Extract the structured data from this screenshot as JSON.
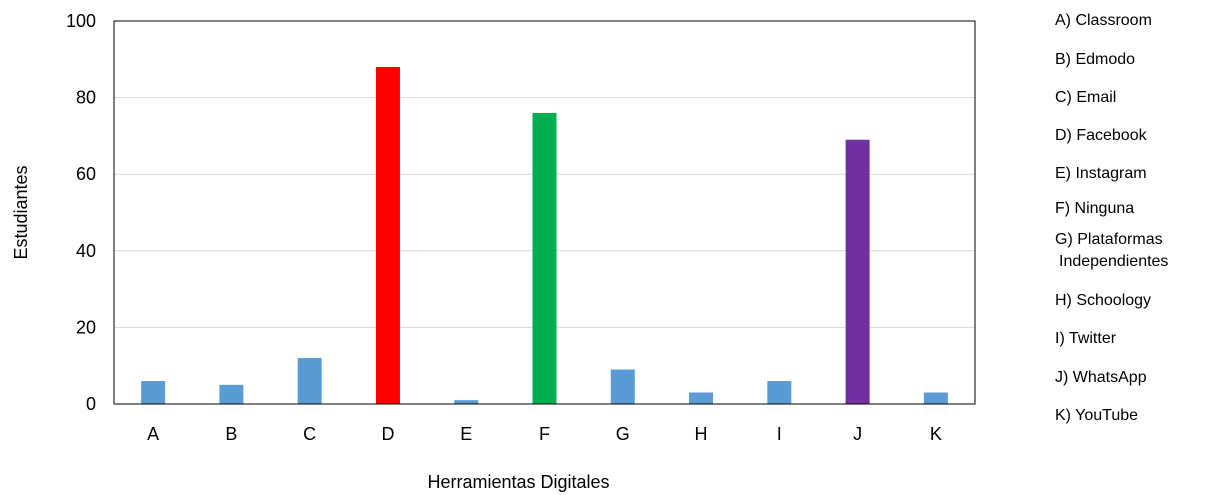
{
  "chart_data": {
    "type": "bar",
    "title": "",
    "xlabel": "Herramientas Digitales",
    "ylabel": "Estudiantes",
    "ylim": [
      0,
      100
    ],
    "yticks": [
      0,
      20,
      40,
      60,
      80,
      100
    ],
    "grid": true,
    "legend_position": "right",
    "categories": [
      "A",
      "B",
      "C",
      "D",
      "E",
      "F",
      "G",
      "H",
      "I",
      "J",
      "K"
    ],
    "values": [
      6,
      5,
      12,
      88,
      1,
      76,
      9,
      3,
      6,
      69,
      3
    ],
    "bar_colors": [
      "#5b9bd5",
      "#5b9bd5",
      "#5b9bd5",
      "#ff0000",
      "#5b9bd5",
      "#00b050",
      "#5b9bd5",
      "#5b9bd5",
      "#5b9bd5",
      "#7030a0",
      "#5b9bd5"
    ],
    "legend": [
      [
        "A)  Classroom"
      ],
      [
        "B)  Edmodo"
      ],
      [
        "C)  Email"
      ],
      [
        "D)  Facebook"
      ],
      [
        "E)  Instagram"
      ],
      [
        "F)  Ninguna"
      ],
      [
        "G)  Plataformas",
        "Independientes"
      ],
      [
        "H)  Schoology"
      ],
      [
        "I)  Twitter"
      ],
      [
        "J)  WhatsApp"
      ],
      [
        "K)  YouTube"
      ]
    ]
  }
}
